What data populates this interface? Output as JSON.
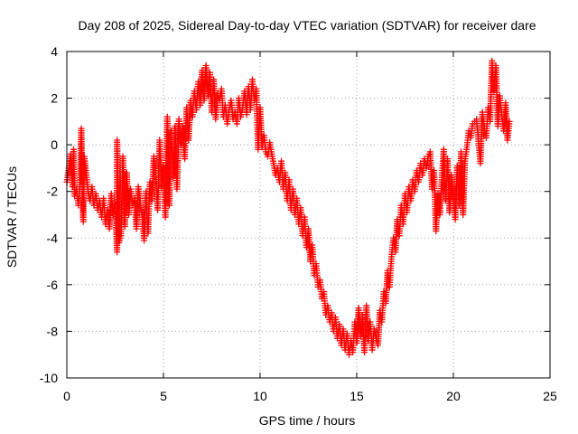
{
  "chart_data": {
    "type": "scatter",
    "title": "Day 208 of 2025, Sidereal Day-to-day VTEC variation (SDTVAR) for receiver dare",
    "xlabel": "GPS time / hours",
    "ylabel": "SDTVAR / TECUs",
    "xlim": [
      0,
      25
    ],
    "ylim": [
      -10,
      4
    ],
    "xticks": [
      "0",
      "5",
      "10",
      "15",
      "20",
      "25"
    ],
    "yticks": [
      "4",
      "2",
      "0",
      "-2",
      "-4",
      "-6",
      "-8",
      "-10"
    ],
    "grid": true,
    "marker": "+",
    "color": "#ff0000",
    "series": [
      {
        "name": "SDTVAR",
        "note": "dense '+' markers, values read approximately from the plot",
        "points": [
          [
            0.0,
            -1.6
          ],
          [
            0.1,
            -1.0
          ],
          [
            0.2,
            -0.4
          ],
          [
            0.3,
            -1.8
          ],
          [
            0.35,
            -0.2
          ],
          [
            0.4,
            -2.2
          ],
          [
            0.5,
            -1.9
          ],
          [
            0.6,
            -2.6
          ],
          [
            0.7,
            -1.5
          ],
          [
            0.75,
            0.7
          ],
          [
            0.8,
            -2.0
          ],
          [
            0.85,
            -3.3
          ],
          [
            0.9,
            -0.5
          ],
          [
            1.0,
            -1.2
          ],
          [
            1.1,
            -2.0
          ],
          [
            1.2,
            -2.4
          ],
          [
            1.3,
            -1.8
          ],
          [
            1.4,
            -2.6
          ],
          [
            1.5,
            -2.1
          ],
          [
            1.6,
            -2.8
          ],
          [
            1.7,
            -2.4
          ],
          [
            1.8,
            -3.1
          ],
          [
            1.9,
            -2.3
          ],
          [
            2.0,
            -3.4
          ],
          [
            2.1,
            -2.8
          ],
          [
            2.2,
            -3.6
          ],
          [
            2.3,
            -2.1
          ],
          [
            2.4,
            -3.0
          ],
          [
            2.5,
            -2.5
          ],
          [
            2.6,
            -4.6
          ],
          [
            2.6,
            0.2
          ],
          [
            2.7,
            -4.2
          ],
          [
            2.8,
            -3.9
          ],
          [
            2.9,
            -0.5
          ],
          [
            3.0,
            -3.5
          ],
          [
            3.1,
            -1.2
          ],
          [
            3.2,
            -3.0
          ],
          [
            3.3,
            -1.9
          ],
          [
            3.4,
            -2.6
          ],
          [
            3.5,
            -2.3
          ],
          [
            3.6,
            -3.6
          ],
          [
            3.7,
            -1.8
          ],
          [
            3.8,
            -2.5
          ],
          [
            3.9,
            -3.1
          ],
          [
            4.0,
            -4.1
          ],
          [
            4.1,
            -2.0
          ],
          [
            4.2,
            -3.8
          ],
          [
            4.3,
            -1.6
          ],
          [
            4.4,
            -2.4
          ],
          [
            4.5,
            -0.5
          ],
          [
            4.6,
            -1.2
          ],
          [
            4.7,
            -2.8
          ],
          [
            4.8,
            0.2
          ],
          [
            4.9,
            -1.8
          ],
          [
            5.0,
            -0.9
          ],
          [
            5.1,
            -3.1
          ],
          [
            5.2,
            1.2
          ],
          [
            5.3,
            -2.6
          ],
          [
            5.4,
            0.6
          ],
          [
            5.5,
            -1.4
          ],
          [
            5.6,
            0.8
          ],
          [
            5.7,
            -1.9
          ],
          [
            5.8,
            1.1
          ],
          [
            5.9,
            0.0
          ],
          [
            6.0,
            0.8
          ],
          [
            6.1,
            -0.6
          ],
          [
            6.2,
            1.6
          ],
          [
            6.3,
            0.2
          ],
          [
            6.4,
            1.9
          ],
          [
            6.5,
            1.2
          ],
          [
            6.6,
            2.3
          ],
          [
            6.7,
            1.5
          ],
          [
            6.8,
            2.7
          ],
          [
            6.9,
            1.7
          ],
          [
            7.0,
            3.2
          ],
          [
            7.1,
            1.9
          ],
          [
            7.2,
            3.4
          ],
          [
            7.3,
            2.1
          ],
          [
            7.4,
            3.1
          ],
          [
            7.5,
            1.4
          ],
          [
            7.6,
            2.8
          ],
          [
            7.7,
            1.1
          ],
          [
            7.8,
            2.2
          ],
          [
            7.9,
            1.9
          ],
          [
            8.0,
            2.4
          ],
          [
            8.1,
            1.2
          ],
          [
            8.2,
            1.7
          ],
          [
            8.3,
            0.9
          ],
          [
            8.4,
            1.5
          ],
          [
            8.5,
            1.9
          ],
          [
            8.6,
            1.1
          ],
          [
            8.7,
            1.4
          ],
          [
            8.8,
            0.9
          ],
          [
            8.9,
            2.0
          ],
          [
            9.0,
            1.2
          ],
          [
            9.1,
            1.6
          ],
          [
            9.2,
            2.3
          ],
          [
            9.3,
            1.3
          ],
          [
            9.4,
            2.5
          ],
          [
            9.5,
            1.5
          ],
          [
            9.6,
            2.8
          ],
          [
            9.7,
            1.9
          ],
          [
            9.8,
            2.4
          ],
          [
            9.9,
            -0.2
          ],
          [
            10.0,
            1.6
          ],
          [
            10.1,
            -0.1
          ],
          [
            10.2,
            0.4
          ],
          [
            10.3,
            -0.3
          ],
          [
            10.4,
            -0.5
          ],
          [
            10.5,
            0.1
          ],
          [
            10.6,
            -0.4
          ],
          [
            10.7,
            -0.8
          ],
          [
            10.8,
            -1.3
          ],
          [
            10.9,
            -1.0
          ],
          [
            11.0,
            -1.6
          ],
          [
            11.1,
            -0.7
          ],
          [
            11.2,
            -1.9
          ],
          [
            11.3,
            -1.2
          ],
          [
            11.4,
            -2.4
          ],
          [
            11.5,
            -1.5
          ],
          [
            11.6,
            -2.8
          ],
          [
            11.7,
            -1.9
          ],
          [
            11.8,
            -3.0
          ],
          [
            11.9,
            -2.3
          ],
          [
            12.0,
            -3.4
          ],
          [
            12.1,
            -2.7
          ],
          [
            12.2,
            -3.9
          ],
          [
            12.3,
            -3.1
          ],
          [
            12.4,
            -4.4
          ],
          [
            12.5,
            -3.6
          ],
          [
            12.6,
            -5.0
          ],
          [
            12.7,
            -4.3
          ],
          [
            12.8,
            -5.6
          ],
          [
            12.9,
            -5.1
          ],
          [
            13.0,
            -6.1
          ],
          [
            13.1,
            -5.8
          ],
          [
            13.2,
            -6.6
          ],
          [
            13.3,
            -6.3
          ],
          [
            13.4,
            -7.3
          ],
          [
            13.5,
            -6.9
          ],
          [
            13.6,
            -7.6
          ],
          [
            13.7,
            -7.2
          ],
          [
            13.8,
            -8.0
          ],
          [
            13.9,
            -7.4
          ],
          [
            14.0,
            -8.3
          ],
          [
            14.1,
            -7.7
          ],
          [
            14.2,
            -8.6
          ],
          [
            14.3,
            -7.9
          ],
          [
            14.4,
            -8.8
          ],
          [
            14.5,
            -8.1
          ],
          [
            14.6,
            -9.0
          ],
          [
            14.7,
            -8.4
          ],
          [
            14.8,
            -8.9
          ],
          [
            14.9,
            -7.6
          ],
          [
            15.0,
            -8.5
          ],
          [
            15.1,
            -7.0
          ],
          [
            15.2,
            -8.2
          ],
          [
            15.3,
            -7.3
          ],
          [
            15.4,
            -8.9
          ],
          [
            15.5,
            -6.9
          ],
          [
            15.6,
            -8.4
          ],
          [
            15.7,
            -7.6
          ],
          [
            15.8,
            -8.8
          ],
          [
            15.9,
            -7.9
          ],
          [
            16.0,
            -8.3
          ],
          [
            16.1,
            -8.6
          ],
          [
            16.2,
            -7.1
          ],
          [
            16.3,
            -7.6
          ],
          [
            16.4,
            -6.3
          ],
          [
            16.5,
            -6.8
          ],
          [
            16.6,
            -5.4
          ],
          [
            16.7,
            -6.1
          ],
          [
            16.8,
            -4.8
          ],
          [
            16.9,
            -4.0
          ],
          [
            17.0,
            -4.6
          ],
          [
            17.1,
            -3.2
          ],
          [
            17.2,
            -3.9
          ],
          [
            17.3,
            -2.6
          ],
          [
            17.4,
            -3.4
          ],
          [
            17.5,
            -2.1
          ],
          [
            17.6,
            -2.9
          ],
          [
            17.7,
            -1.8
          ],
          [
            17.8,
            -2.4
          ],
          [
            17.9,
            -1.5
          ],
          [
            18.0,
            -2.0
          ],
          [
            18.1,
            -1.1
          ],
          [
            18.2,
            -1.6
          ],
          [
            18.3,
            -0.8
          ],
          [
            18.4,
            -1.3
          ],
          [
            18.5,
            -0.6
          ],
          [
            18.6,
            -1.0
          ],
          [
            18.7,
            -0.5
          ],
          [
            18.8,
            -0.3
          ],
          [
            18.9,
            -1.9
          ],
          [
            19.0,
            -1.1
          ],
          [
            19.1,
            -3.7
          ],
          [
            19.2,
            -2.1
          ],
          [
            19.3,
            -3.0
          ],
          [
            19.4,
            -1.5
          ],
          [
            19.5,
            -0.2
          ],
          [
            19.6,
            -2.4
          ],
          [
            19.7,
            -0.6
          ],
          [
            19.8,
            -2.9
          ],
          [
            19.9,
            -1.3
          ],
          [
            20.0,
            -2.2
          ],
          [
            20.1,
            -3.2
          ],
          [
            20.2,
            -0.9
          ],
          [
            20.3,
            -2.6
          ],
          [
            20.4,
            -0.3
          ],
          [
            20.5,
            -3.0
          ],
          [
            20.6,
            -0.7
          ],
          [
            20.7,
            -0.1
          ],
          [
            20.8,
            0.6
          ],
          [
            20.9,
            0.3
          ],
          [
            21.0,
            0.9
          ],
          [
            21.2,
            1.1
          ],
          [
            21.4,
            -0.8
          ],
          [
            21.5,
            1.4
          ],
          [
            21.6,
            0.7
          ],
          [
            21.7,
            0.3
          ],
          [
            21.8,
            1.6
          ],
          [
            21.9,
            1.0
          ],
          [
            22.0,
            3.6
          ],
          [
            22.1,
            2.3
          ],
          [
            22.2,
            3.4
          ],
          [
            22.3,
            0.8
          ],
          [
            22.4,
            2.1
          ],
          [
            22.5,
            1.3
          ],
          [
            22.6,
            0.6
          ],
          [
            22.7,
            1.8
          ],
          [
            22.8,
            0.2
          ],
          [
            22.9,
            1.0
          ]
        ]
      }
    ]
  }
}
